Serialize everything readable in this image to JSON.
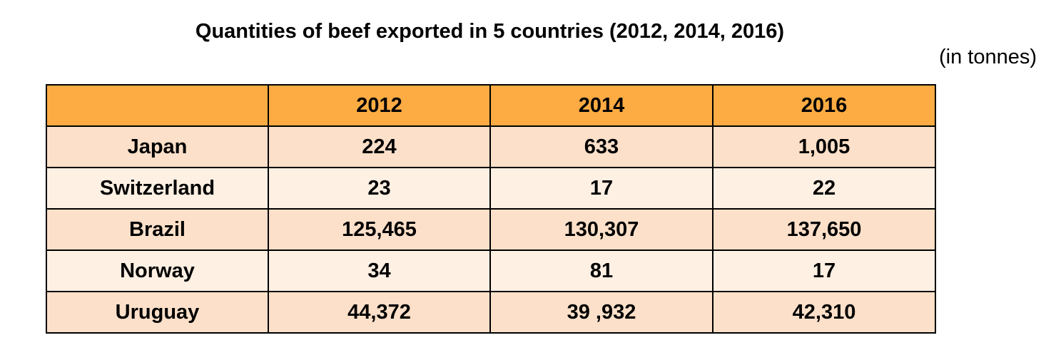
{
  "title": "Quantities of beef exported in 5 countries (2012, 2014, 2016)",
  "unit_note": "(in tonnes)",
  "colors": {
    "header_bg": "#fdab43",
    "row_odd_bg": "#fde0c9",
    "row_even_bg": "#fef0e3",
    "border": "#000000"
  },
  "chart_data": {
    "type": "table",
    "title": "Quantities of beef exported in 5 countries (2012, 2014, 2016)",
    "unit": "(in tonnes)",
    "columns": [
      "",
      "2012",
      "2014",
      "2016"
    ],
    "rows": [
      {
        "label": "Japan",
        "cells": [
          "224",
          "633",
          "1,005"
        ]
      },
      {
        "label": "Switzerland",
        "cells": [
          "23",
          "17",
          "22"
        ]
      },
      {
        "label": "Brazil",
        "cells": [
          "125,465",
          "130,307",
          "137,650"
        ]
      },
      {
        "label": "Norway",
        "cells": [
          "34",
          "81",
          "17"
        ]
      },
      {
        "label": "Uruguay",
        "cells": [
          "44,372",
          "39 ,932",
          "42,310"
        ]
      }
    ]
  }
}
